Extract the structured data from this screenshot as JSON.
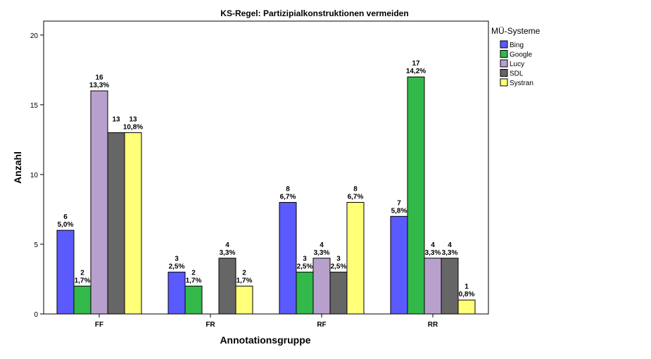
{
  "chart_data": {
    "type": "bar",
    "title": "KS-Regel: Partizipialkonstruktionen vermeiden",
    "xlabel": "Annotationsgruppe",
    "ylabel": "Anzahl",
    "ylim": [
      0,
      21
    ],
    "yticks": [
      0,
      5,
      10,
      15,
      20
    ],
    "grid": false,
    "legend_title": "MÜ-Systeme",
    "legend_position": "right",
    "categories": [
      "FF",
      "FR",
      "RF",
      "RR"
    ],
    "series": [
      {
        "name": "Bing",
        "color": "#5a5aff",
        "values": [
          6,
          3,
          8,
          7
        ],
        "percent_labels": [
          "5,0%",
          "2,5%",
          "6,7%",
          "5,8%"
        ]
      },
      {
        "name": "Google",
        "color": "#33b84a",
        "values": [
          2,
          2,
          3,
          17
        ],
        "percent_labels": [
          "1,7%",
          "1,7%",
          "2,5%",
          "14,2%"
        ]
      },
      {
        "name": "Lucy",
        "color": "#b8a0cc",
        "values": [
          16,
          0,
          4,
          4
        ],
        "percent_labels": [
          "13,3%",
          "",
          "3,3%",
          "3,3%"
        ]
      },
      {
        "name": "SDL",
        "color": "#666666",
        "values": [
          13,
          4,
          3,
          4
        ],
        "percent_labels": [
          "",
          "3,3%",
          "2,5%",
          "3,3%"
        ]
      },
      {
        "name": "Systran",
        "color": "#ffff78",
        "values": [
          13,
          2,
          8,
          1
        ],
        "percent_labels": [
          "10,8%",
          "1,7%",
          "6,7%",
          "0,8%"
        ]
      }
    ]
  }
}
